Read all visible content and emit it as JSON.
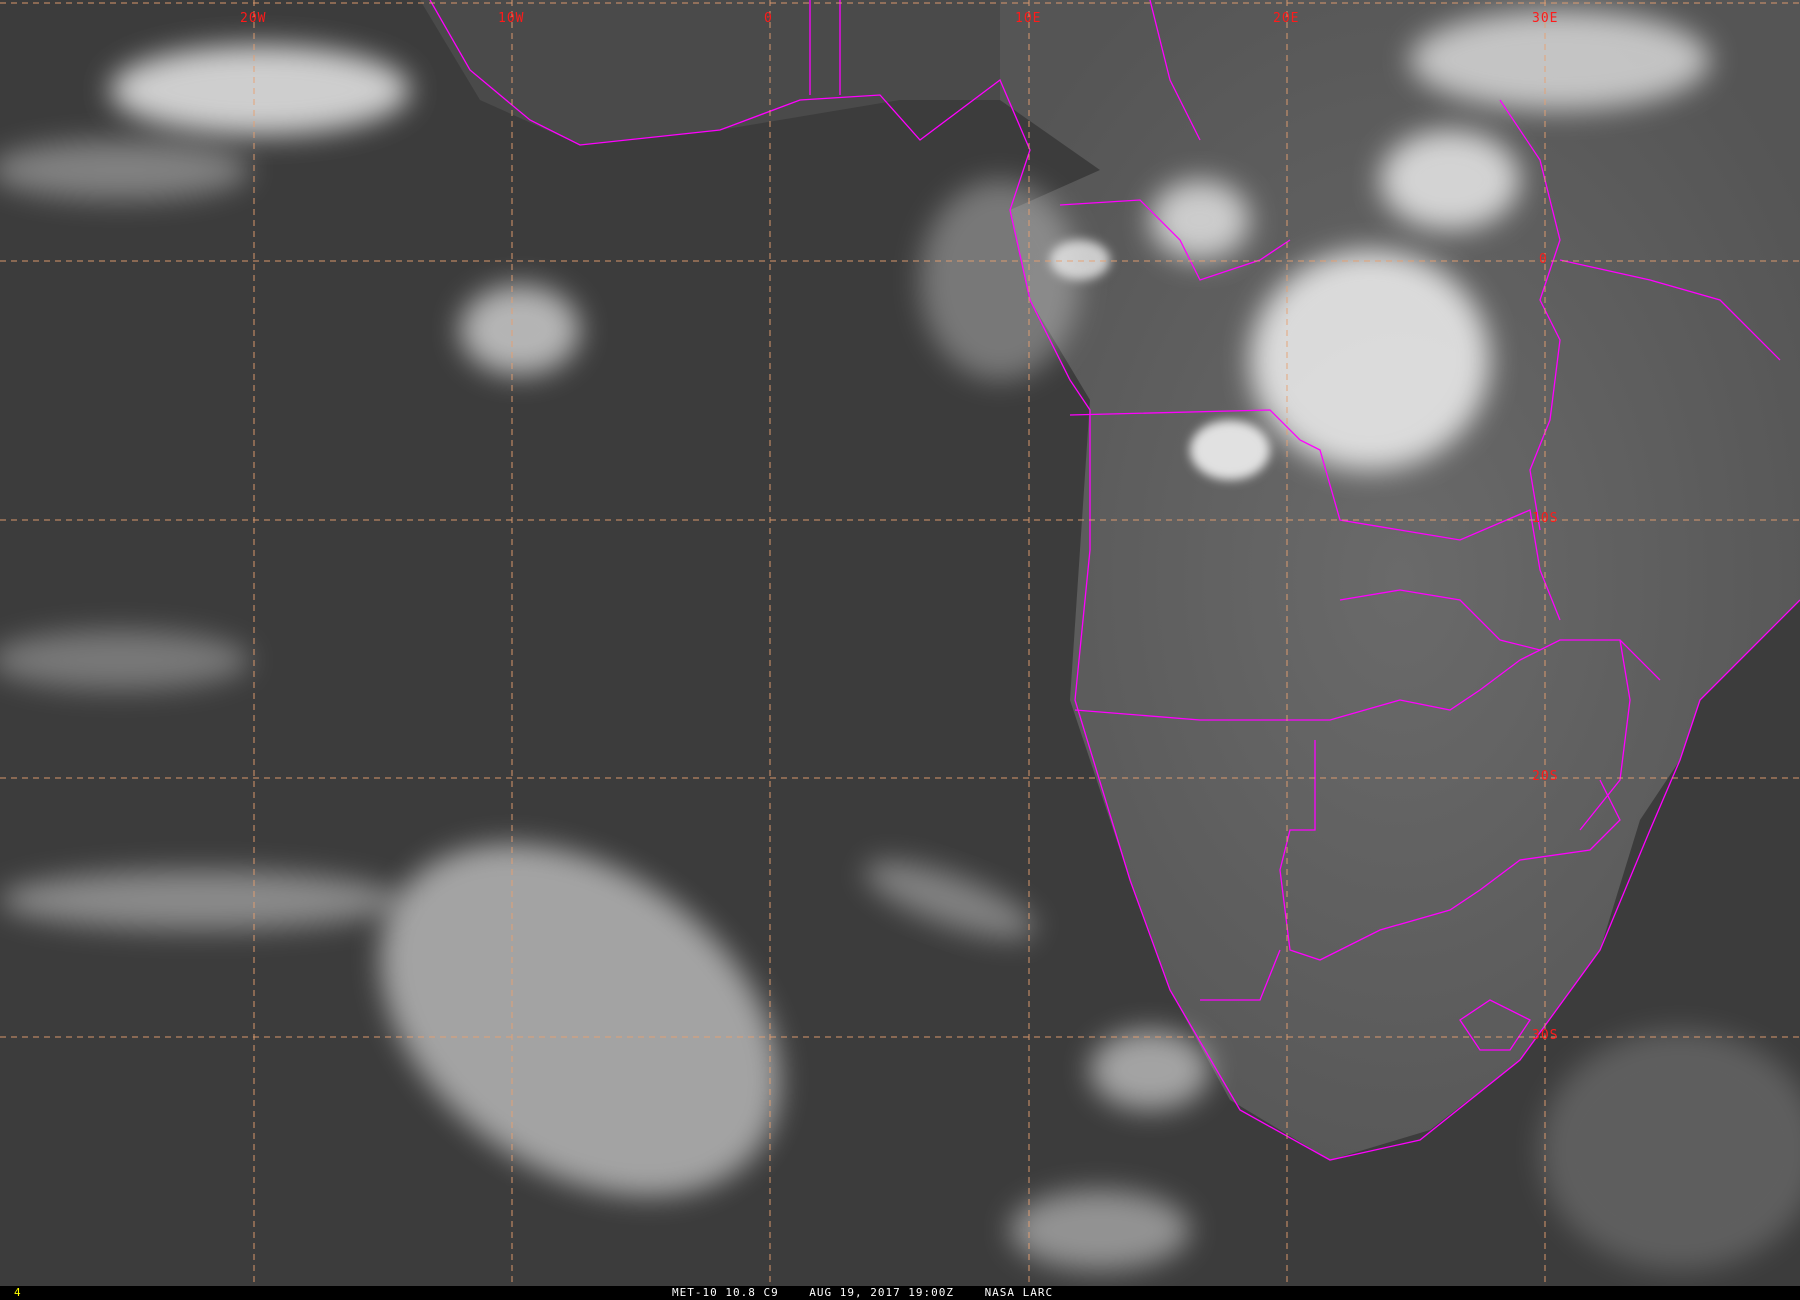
{
  "image": {
    "caption": {
      "satellite": "MET-10 10.8 C9",
      "datetime": "AUG 19, 2017 19:00Z",
      "source": "NASA LARC"
    },
    "frame_number": "4",
    "longitude_labels": [
      "20W",
      "10W",
      "0",
      "10E",
      "20E",
      "30E"
    ],
    "latitude_labels": [
      "0",
      "10S",
      "20S",
      "30S"
    ],
    "colors": {
      "grid": "#e8a070",
      "borders": "#ff00ff",
      "labels": "#ff1a1a",
      "frame_number": "#ffff00"
    }
  }
}
